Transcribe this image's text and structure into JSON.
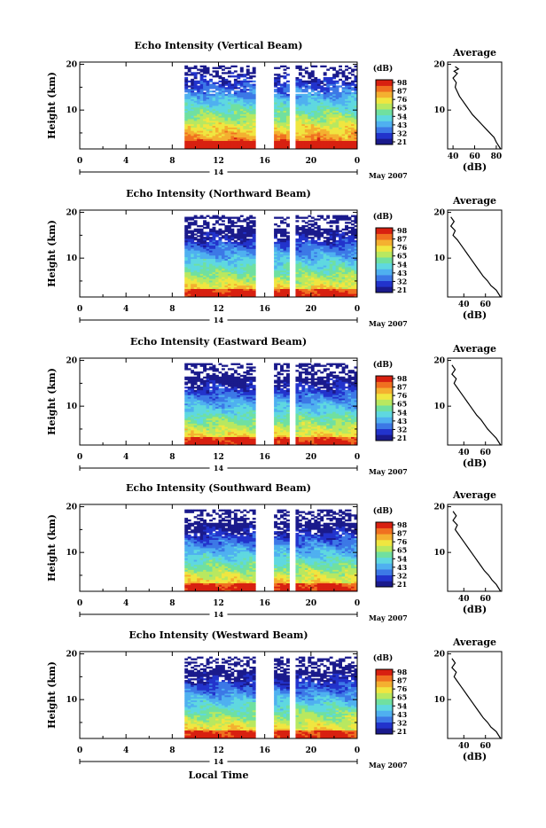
{
  "figure": {
    "xlabel": "Local Time",
    "date_label": "May 2007",
    "day_label": "14",
    "avg_title": "Average",
    "colorbar_title": "(dB)",
    "avg_xlabel": "(dB)"
  },
  "colors": {
    "colormap": [
      "#1a1a8c",
      "#2233cc",
      "#3c78e6",
      "#4fb0f0",
      "#5fd8e0",
      "#70e0a0",
      "#b8e860",
      "#f0e640",
      "#f4b030",
      "#f07020",
      "#d82010"
    ],
    "line": "#000000"
  },
  "chart_data": [
    {
      "type": "heatmap",
      "title": "Echo Intensity (Vertical Beam)",
      "ylabel": "Height (km)",
      "x_ticks": [
        "0",
        "4",
        "8",
        "12",
        "16",
        "20",
        "0"
      ],
      "y_ticks": [
        "20",
        "10"
      ],
      "xlim": [
        0,
        24
      ],
      "ylim": [
        1.5,
        20.5
      ],
      "data_gaps_hours": [
        [
          0,
          9.2
        ],
        [
          15.2,
          16.7
        ],
        [
          18.2,
          18.6
        ]
      ],
      "colorbar_ticks": [
        "98",
        "87",
        "76",
        "65",
        "54",
        "43",
        "32",
        "21"
      ],
      "average": {
        "x_ticks": [
          "40",
          "60",
          "80"
        ],
        "xlim": [
          35,
          85
        ],
        "height_km": [
          1.5,
          3,
          4,
          5,
          6,
          7,
          8,
          9,
          10,
          11,
          12,
          13,
          14,
          15,
          16,
          17,
          18,
          18.5,
          19,
          19.5
        ],
        "value_db": [
          84,
          80,
          78,
          74,
          70,
          66,
          62,
          58,
          55,
          52,
          49,
          46,
          44,
          42,
          43,
          40,
          44,
          41,
          45,
          42
        ]
      }
    },
    {
      "type": "heatmap",
      "title": "Echo Intensity (Northward Beam)",
      "ylabel": "Height (km)",
      "x_ticks": [
        "0",
        "4",
        "8",
        "12",
        "16",
        "20",
        "0"
      ],
      "y_ticks": [
        "20",
        "10"
      ],
      "xlim": [
        0,
        24
      ],
      "ylim": [
        1.5,
        20.5
      ],
      "data_gaps_hours": [
        [
          0,
          9.2
        ],
        [
          15.2,
          16.7
        ],
        [
          18.2,
          18.6
        ]
      ],
      "colorbar_ticks": [
        "98",
        "87",
        "76",
        "65",
        "54",
        "43",
        "32",
        "21"
      ],
      "average": {
        "x_ticks": [
          "40",
          "60"
        ],
        "xlim": [
          25,
          75
        ],
        "height_km": [
          1.5,
          3,
          4,
          5,
          6,
          7,
          8,
          9,
          10,
          11,
          12,
          13,
          14,
          15,
          16,
          17,
          18,
          19
        ],
        "value_db": [
          74,
          70,
          65,
          62,
          58,
          55,
          52,
          49,
          46,
          43,
          40,
          37,
          34,
          30,
          32,
          28,
          31,
          28
        ]
      }
    },
    {
      "type": "heatmap",
      "title": "Echo Intensity (Eastward Beam)",
      "ylabel": "Height (km)",
      "x_ticks": [
        "0",
        "4",
        "8",
        "12",
        "16",
        "20",
        "0"
      ],
      "y_ticks": [
        "20",
        "10"
      ],
      "xlim": [
        0,
        24
      ],
      "ylim": [
        1.5,
        20.5
      ],
      "data_gaps_hours": [
        [
          0,
          9.2
        ],
        [
          15.2,
          16.7
        ],
        [
          18.2,
          18.6
        ]
      ],
      "colorbar_ticks": [
        "98",
        "87",
        "76",
        "65",
        "54",
        "43",
        "32",
        "21"
      ],
      "average": {
        "x_ticks": [
          "40",
          "60"
        ],
        "xlim": [
          25,
          75
        ],
        "height_km": [
          1.5,
          3,
          4,
          5,
          6,
          7,
          8,
          9,
          10,
          11,
          12,
          13,
          14,
          15,
          16,
          17,
          18,
          19
        ],
        "value_db": [
          74,
          70,
          66,
          62,
          59,
          56,
          52,
          49,
          46,
          43,
          40,
          37,
          34,
          31,
          33,
          29,
          32,
          29
        ]
      }
    },
    {
      "type": "heatmap",
      "title": "Echo Intensity (Southward Beam)",
      "ylabel": "Height (km)",
      "x_ticks": [
        "0",
        "4",
        "8",
        "12",
        "16",
        "20",
        "0"
      ],
      "y_ticks": [
        "20",
        "10"
      ],
      "xlim": [
        0,
        24
      ],
      "ylim": [
        1.5,
        20.5
      ],
      "data_gaps_hours": [
        [
          0,
          9.2
        ],
        [
          15.2,
          16.7
        ],
        [
          18.2,
          18.6
        ]
      ],
      "colorbar_ticks": [
        "98",
        "87",
        "76",
        "65",
        "54",
        "43",
        "32",
        "21"
      ],
      "average": {
        "x_ticks": [
          "40",
          "60"
        ],
        "xlim": [
          25,
          75
        ],
        "height_km": [
          1.5,
          3,
          4,
          5,
          6,
          7,
          8,
          9,
          10,
          11,
          12,
          13,
          14,
          15,
          16,
          17,
          18,
          19
        ],
        "value_db": [
          74,
          70,
          66,
          63,
          59,
          56,
          53,
          50,
          47,
          44,
          41,
          38,
          35,
          32,
          34,
          30,
          33,
          30
        ]
      }
    },
    {
      "type": "heatmap",
      "title": "Echo Intensity (Westward Beam)",
      "ylabel": "Height (km)",
      "x_ticks": [
        "0",
        "4",
        "8",
        "12",
        "16",
        "20",
        "0"
      ],
      "y_ticks": [
        "20",
        "10"
      ],
      "xlim": [
        0,
        24
      ],
      "ylim": [
        1.5,
        20.5
      ],
      "data_gaps_hours": [
        [
          0,
          9.2
        ],
        [
          15.2,
          16.7
        ],
        [
          18.2,
          18.6
        ]
      ],
      "colorbar_ticks": [
        "98",
        "87",
        "76",
        "65",
        "54",
        "43",
        "32",
        "21"
      ],
      "average": {
        "x_ticks": [
          "40",
          "60"
        ],
        "xlim": [
          25,
          75
        ],
        "height_km": [
          1.5,
          3,
          4,
          5,
          6,
          7,
          8,
          9,
          10,
          11,
          12,
          13,
          14,
          15,
          16,
          17,
          18,
          19
        ],
        "value_db": [
          74,
          70,
          65,
          62,
          58,
          55,
          52,
          49,
          46,
          43,
          40,
          37,
          34,
          31,
          33,
          29,
          32,
          29
        ]
      }
    }
  ]
}
